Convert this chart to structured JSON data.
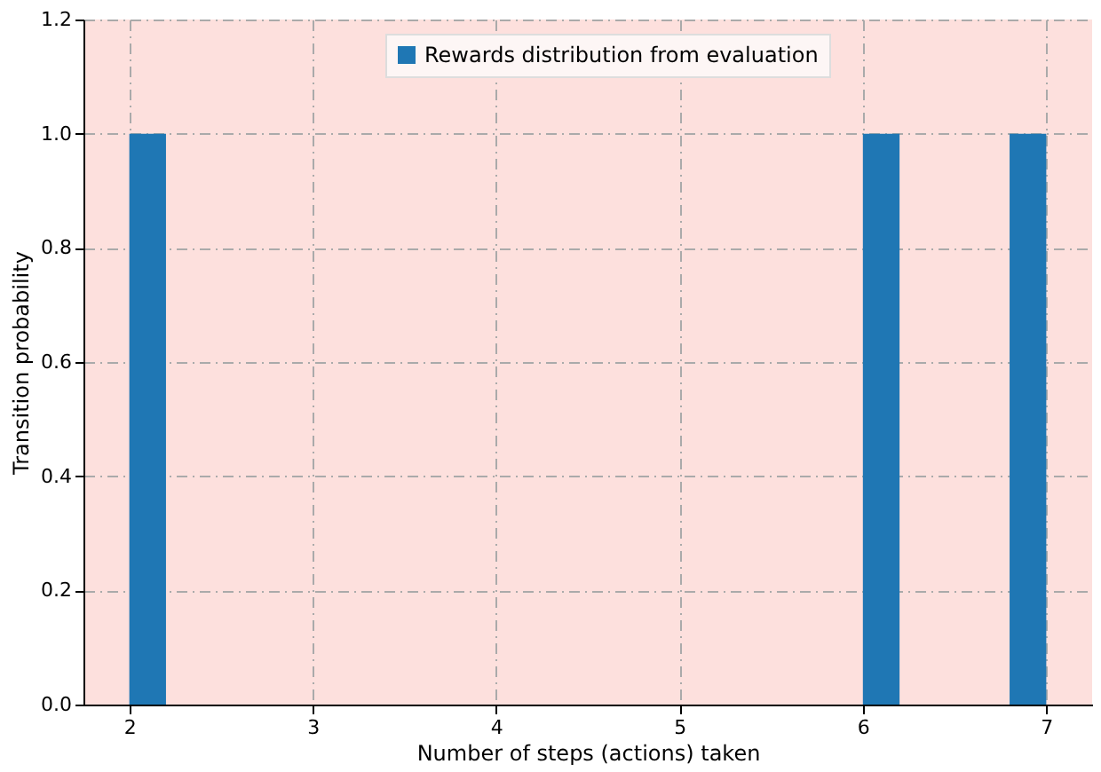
{
  "chart_data": {
    "type": "histogram",
    "xlabel": "Number of steps (actions) taken",
    "ylabel": "Transition probability",
    "bins": [
      2.0,
      2.2,
      2.4,
      2.6,
      2.8,
      3.0,
      3.2,
      3.4,
      3.6,
      3.8,
      4.0,
      4.2,
      4.4,
      4.6,
      4.8,
      5.0,
      5.2,
      5.4,
      5.6,
      5.8,
      6.0,
      6.2,
      6.4,
      6.6,
      6.8,
      7.0
    ],
    "series": [
      {
        "name": "Rewards distribution from evaluation",
        "color": "#1f77b4",
        "values": [
          1.0,
          0,
          0,
          0,
          0,
          0,
          0,
          0,
          0,
          0,
          0,
          0,
          0,
          0,
          0,
          0,
          0,
          0,
          0,
          0,
          1.0,
          0,
          0,
          0,
          1.0
        ]
      }
    ],
    "xlim": [
      1.75,
      7.25
    ],
    "xticks": [
      2,
      3,
      4,
      5,
      6,
      7
    ],
    "ylim": [
      0.0,
      1.2
    ],
    "yticks": [
      {
        "value": 0.0,
        "label": "0.0"
      },
      {
        "value": 0.2,
        "label": "0.2"
      },
      {
        "value": 0.4,
        "label": "0.4"
      },
      {
        "value": 0.6,
        "label": "0.6"
      },
      {
        "value": 0.8,
        "label": "0.8"
      },
      {
        "value": 1.0,
        "label": "1.0"
      },
      {
        "value": 1.2,
        "label": "1.2"
      }
    ],
    "grid": true,
    "legend": "top"
  }
}
